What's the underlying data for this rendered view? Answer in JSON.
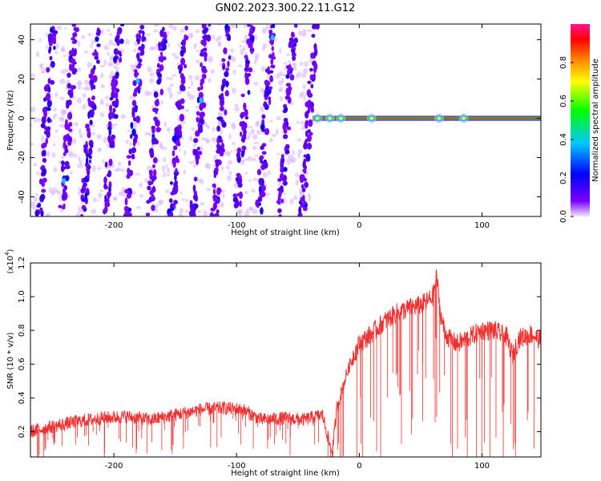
{
  "figure_title": "GN02.2023.300.22.11.G12",
  "chart_data": [
    {
      "type": "heatmap",
      "title": "GN02.2023.300.22.11.G12",
      "xlabel": "Height of straight line (km)",
      "ylabel": "Frequency (Hz)",
      "xlim": [
        -268,
        148
      ],
      "ylim": [
        -50,
        48
      ],
      "xticks": [
        -200,
        -100,
        0,
        100
      ],
      "xtick_labels": [
        "-200",
        "-100",
        "0",
        "100"
      ],
      "yticks": [
        -40,
        -20,
        0,
        20,
        40
      ],
      "ytick_labels": [
        "-40",
        "-20",
        "0",
        "20",
        "40"
      ],
      "colorbar": {
        "label": "Normalized spectral amplitude",
        "range": [
          0,
          1
        ],
        "ticks": [
          0.0,
          0.2,
          0.4,
          0.6,
          0.8
        ],
        "tick_labels": [
          "0.0",
          "0.2",
          "0.4",
          "0.6",
          "0.8"
        ],
        "colors": [
          "#f2e6ff",
          "#7a00ff",
          "#0000ff",
          "#00c8ff",
          "#00ff00",
          "#ffff00",
          "#ff8000",
          "#ff0000",
          "#ff1493"
        ]
      },
      "stripe_region_x": [
        -268,
        -38
      ],
      "stripe_centers_km": [
        -255,
        -237,
        -219,
        -201,
        -183,
        -165,
        -147,
        -130,
        -112,
        -94,
        -76,
        -59,
        -41
      ],
      "stripe_tilt_km": 12,
      "carrier": {
        "frequency_hz": 0,
        "x_start_km": -38,
        "x_end_km": 148,
        "bright_spots_km": [
          -34,
          -24,
          -15,
          10,
          65,
          85
        ]
      }
    },
    {
      "type": "line",
      "title": "",
      "xlabel": "Height of straight line (km)",
      "ylabel": "SNR (10 * v/v)",
      "y_scale_note": "(x10",
      "y_scale_exp": "4",
      "y_scale_close": ")",
      "xlim": [
        -268,
        148
      ],
      "ylim": [
        0.05,
        1.2
      ],
      "xticks": [
        -200,
        -100,
        0,
        100
      ],
      "xtick_labels": [
        "-200",
        "-100",
        "0",
        "100"
      ],
      "yticks": [
        0.2,
        0.4,
        0.6,
        0.8,
        1.0,
        1.2
      ],
      "ytick_labels": [
        "0.2",
        "0.4",
        "0.6",
        "0.8",
        "1.0",
        "1.2"
      ],
      "series": [
        {
          "name": "SNR",
          "color": "#ee3030",
          "x": [
            -268,
            -250,
            -230,
            -210,
            -190,
            -170,
            -150,
            -130,
            -110,
            -95,
            -80,
            -60,
            -45,
            -30,
            -26,
            -24,
            -22,
            -18,
            -14,
            -10,
            -5,
            0,
            5,
            10,
            20,
            30,
            40,
            50,
            55,
            60,
            63,
            66,
            70,
            75,
            80,
            90,
            100,
            110,
            120,
            125,
            130,
            140,
            148
          ],
          "y": [
            0.2,
            0.23,
            0.26,
            0.28,
            0.29,
            0.27,
            0.3,
            0.33,
            0.34,
            0.33,
            0.27,
            0.28,
            0.27,
            0.3,
            0.18,
            0.12,
            0.08,
            0.35,
            0.45,
            0.55,
            0.65,
            0.72,
            0.75,
            0.78,
            0.85,
            0.9,
            0.93,
            0.95,
            0.97,
            1.0,
            1.12,
            0.9,
            0.78,
            0.74,
            0.72,
            0.76,
            0.8,
            0.8,
            0.76,
            0.65,
            0.75,
            0.78,
            0.74
          ]
        }
      ]
    }
  ]
}
